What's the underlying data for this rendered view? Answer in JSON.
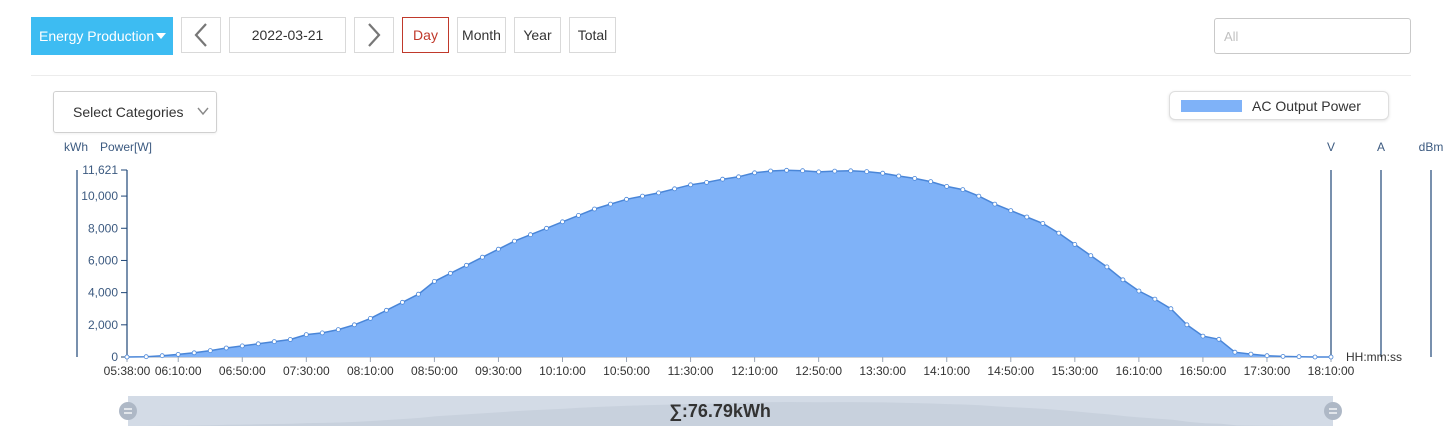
{
  "toolbar": {
    "energy_label": "Energy Production",
    "date": "2022-03-21",
    "day_label": "Day",
    "month_label": "Month",
    "year_label": "Year",
    "total_label": "Total",
    "search_placeholder": "All"
  },
  "categories_select": {
    "label": "Select Categories"
  },
  "colors": {
    "accent": "#3dbcf2",
    "series_fill": "#7fb2f8",
    "series_line": "#4a86d8",
    "axis": "#1e4677"
  },
  "chart_data": {
    "type": "area",
    "legend": {
      "position": "top-right",
      "entries": [
        "AC Output Power"
      ]
    },
    "left_axis_titles": [
      "kWh",
      "Power[W]"
    ],
    "right_axis_titles": [
      "V",
      "A",
      "dBm"
    ],
    "xlabel": "HH:mm:ss",
    "ylim": [
      0,
      11621
    ],
    "y_ticks": [
      0,
      2000,
      4000,
      6000,
      8000,
      10000,
      11621
    ],
    "y_tick_labels": [
      "0",
      "2,000",
      "4,000",
      "6,000",
      "8,000",
      "10,000",
      "11,621"
    ],
    "x_tick_labels": [
      "05:38:00",
      "06:10:00",
      "06:50:00",
      "07:30:00",
      "08:10:00",
      "08:50:00",
      "09:30:00",
      "10:10:00",
      "10:50:00",
      "11:30:00",
      "12:10:00",
      "12:50:00",
      "13:30:00",
      "14:10:00",
      "14:50:00",
      "15:30:00",
      "16:10:00",
      "16:50:00",
      "17:30:00",
      "18:10:00"
    ],
    "x_range_minutes": [
      338,
      1090
    ],
    "series": [
      {
        "name": "AC Output Power",
        "x_minutes": [
          338,
          350,
          360,
          370,
          380,
          390,
          400,
          410,
          420,
          430,
          440,
          450,
          460,
          470,
          480,
          490,
          500,
          510,
          520,
          530,
          540,
          550,
          560,
          570,
          580,
          590,
          600,
          610,
          620,
          630,
          640,
          650,
          660,
          670,
          680,
          690,
          700,
          710,
          720,
          730,
          740,
          750,
          760,
          770,
          780,
          790,
          800,
          810,
          820,
          830,
          840,
          850,
          860,
          870,
          880,
          890,
          900,
          910,
          920,
          930,
          940,
          950,
          960,
          970,
          980,
          990,
          1000,
          1010,
          1020,
          1030,
          1040,
          1050,
          1060,
          1070,
          1080,
          1090
        ],
        "values": [
          0,
          20,
          80,
          160,
          260,
          400,
          560,
          690,
          820,
          960,
          1090,
          1390,
          1500,
          1700,
          2000,
          2400,
          2900,
          3400,
          3900,
          4700,
          5200,
          5700,
          6200,
          6700,
          7200,
          7600,
          8000,
          8400,
          8800,
          9200,
          9500,
          9800,
          10000,
          10200,
          10450,
          10700,
          10850,
          11050,
          11200,
          11450,
          11560,
          11600,
          11580,
          11500,
          11550,
          11570,
          11520,
          11420,
          11250,
          11100,
          10900,
          10600,
          10400,
          10000,
          9500,
          9100,
          8700,
          8300,
          7700,
          7000,
          6300,
          5600,
          4800,
          4100,
          3600,
          3000,
          2000,
          1300,
          1100,
          300,
          180,
          80,
          40,
          20,
          0,
          0
        ]
      }
    ]
  },
  "summary": {
    "total": "∑:76.79kWh"
  }
}
